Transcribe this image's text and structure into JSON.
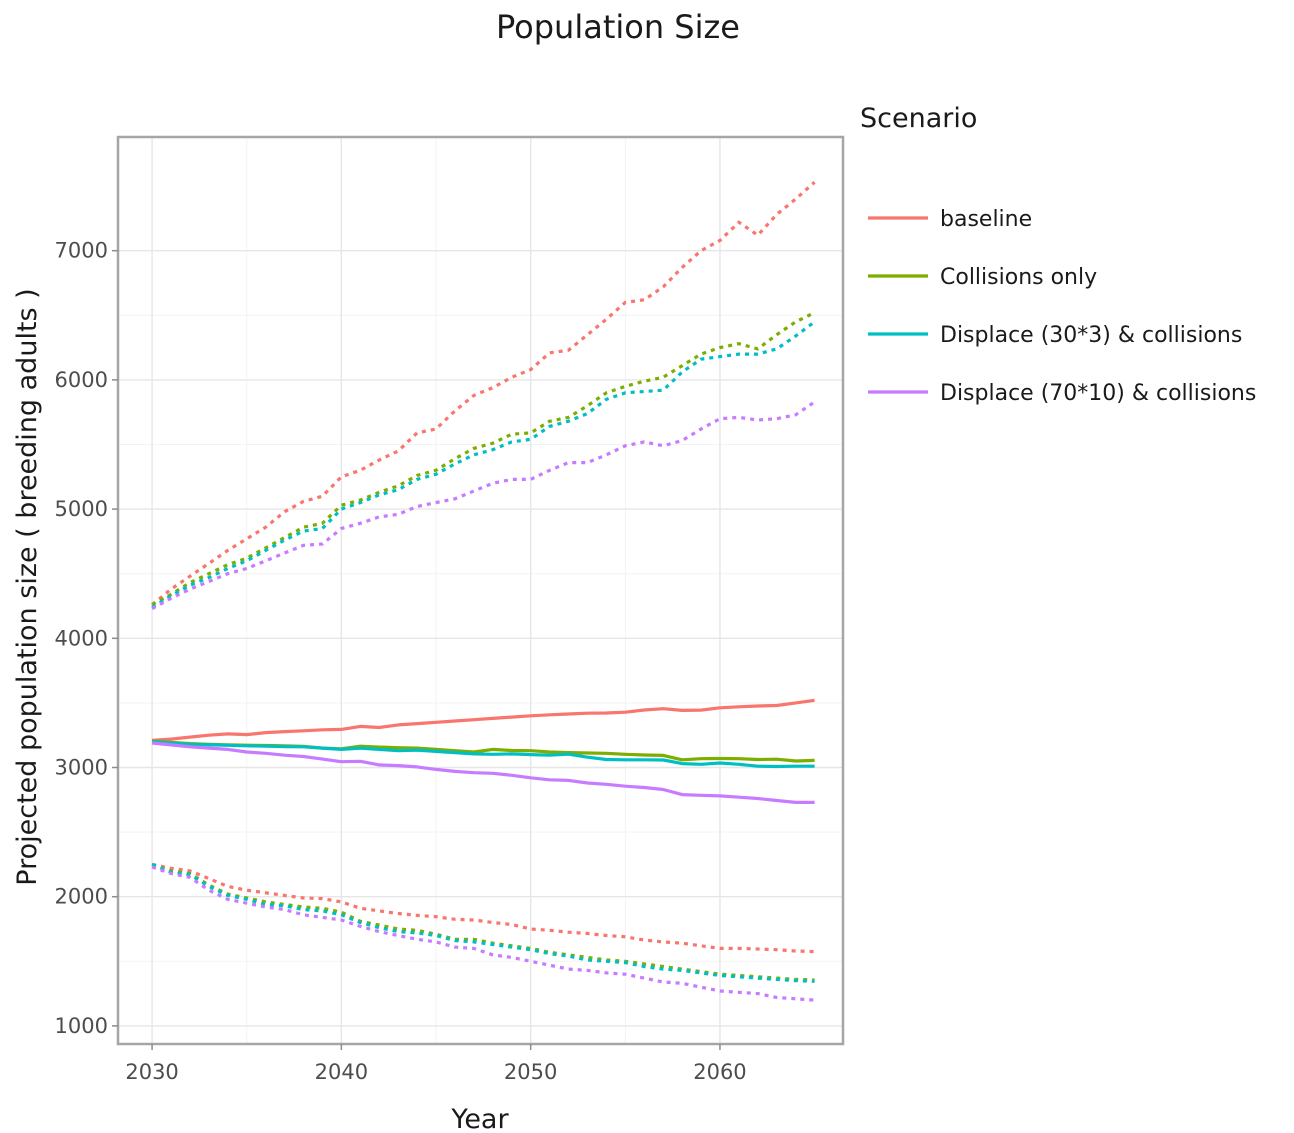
{
  "chart_data": {
    "type": "line",
    "title": "Population Size",
    "xlabel": "Year",
    "ylabel": "Projected population size ( breeding adults )",
    "xlim": [
      2028.2,
      2066.5
    ],
    "ylim": [
      860,
      7880
    ],
    "xticks": [
      2030,
      2040,
      2050,
      2060
    ],
    "yticks": [
      1000,
      2000,
      3000,
      4000,
      5000,
      6000,
      7000
    ],
    "grid": true,
    "legend": {
      "title": "Scenario",
      "position": "right"
    },
    "x": [
      2030,
      2031,
      2032,
      2033,
      2034,
      2035,
      2036,
      2037,
      2038,
      2039,
      2040,
      2041,
      2042,
      2043,
      2044,
      2045,
      2046,
      2047,
      2048,
      2049,
      2050,
      2051,
      2052,
      2053,
      2054,
      2055,
      2056,
      2057,
      2058,
      2059,
      2060,
      2061,
      2062,
      2063,
      2064,
      2065
    ],
    "series": [
      {
        "name": "baseline",
        "color": "#F8766D",
        "mean": [
          3210,
          3220,
          3235,
          3250,
          3260,
          3255,
          3270,
          3278,
          3284,
          3292,
          3295,
          3318,
          3310,
          3330,
          3340,
          3350,
          3360,
          3370,
          3380,
          3390,
          3400,
          3408,
          3414,
          3420,
          3422,
          3428,
          3445,
          3455,
          3442,
          3444,
          3462,
          3470,
          3476,
          3480,
          3500,
          3520
        ],
        "upper": [
          4260,
          4380,
          4480,
          4580,
          4680,
          4770,
          4860,
          4980,
          5060,
          5100,
          5250,
          5300,
          5380,
          5450,
          5590,
          5620,
          5760,
          5880,
          5940,
          6020,
          6080,
          6210,
          6230,
          6350,
          6470,
          6600,
          6620,
          6720,
          6870,
          7000,
          7080,
          7220,
          7120,
          7280,
          7400,
          7530
        ],
        "lower": [
          2250,
          2220,
          2200,
          2140,
          2080,
          2050,
          2030,
          2010,
          1990,
          1985,
          1960,
          1910,
          1890,
          1870,
          1855,
          1845,
          1825,
          1820,
          1800,
          1785,
          1750,
          1740,
          1725,
          1715,
          1700,
          1690,
          1665,
          1650,
          1640,
          1620,
          1600,
          1600,
          1595,
          1590,
          1580,
          1575
        ]
      },
      {
        "name": "Collisions only",
        "color": "#7CAE00",
        "mean": [
          3205,
          3195,
          3185,
          3180,
          3176,
          3173,
          3170,
          3168,
          3164,
          3150,
          3145,
          3165,
          3158,
          3153,
          3150,
          3140,
          3130,
          3120,
          3140,
          3132,
          3130,
          3120,
          3115,
          3112,
          3110,
          3102,
          3097,
          3094,
          3060,
          3068,
          3070,
          3068,
          3062,
          3064,
          3050,
          3055
        ],
        "upper": [
          4260,
          4340,
          4430,
          4500,
          4570,
          4620,
          4700,
          4780,
          4860,
          4890,
          5030,
          5070,
          5130,
          5180,
          5260,
          5300,
          5390,
          5470,
          5510,
          5580,
          5590,
          5680,
          5710,
          5800,
          5900,
          5950,
          5990,
          6020,
          6110,
          6200,
          6250,
          6280,
          6240,
          6350,
          6450,
          6520
        ],
        "lower": [
          2250,
          2200,
          2180,
          2090,
          2020,
          1990,
          1960,
          1940,
          1920,
          1910,
          1880,
          1810,
          1780,
          1750,
          1740,
          1710,
          1670,
          1670,
          1640,
          1620,
          1600,
          1570,
          1550,
          1530,
          1510,
          1500,
          1480,
          1460,
          1440,
          1420,
          1400,
          1390,
          1380,
          1370,
          1360,
          1355
        ]
      },
      {
        "name": "Displace (30*3) & collisions",
        "color": "#00BFC4",
        "mean": [
          3200,
          3190,
          3180,
          3176,
          3172,
          3168,
          3165,
          3162,
          3160,
          3150,
          3140,
          3150,
          3140,
          3130,
          3135,
          3125,
          3115,
          3105,
          3102,
          3105,
          3100,
          3095,
          3103,
          3080,
          3062,
          3060,
          3060,
          3058,
          3030,
          3025,
          3035,
          3025,
          3010,
          3008,
          3010,
          3010
        ],
        "upper": [
          4240,
          4330,
          4410,
          4470,
          4540,
          4600,
          4680,
          4760,
          4830,
          4850,
          5000,
          5050,
          5110,
          5150,
          5230,
          5270,
          5350,
          5420,
          5460,
          5520,
          5540,
          5640,
          5680,
          5740,
          5850,
          5900,
          5910,
          5920,
          6060,
          6160,
          6180,
          6200,
          6200,
          6240,
          6340,
          6450
        ],
        "lower": [
          2250,
          2190,
          2170,
          2080,
          2010,
          1980,
          1940,
          1930,
          1900,
          1890,
          1860,
          1800,
          1760,
          1730,
          1720,
          1700,
          1660,
          1650,
          1630,
          1610,
          1590,
          1560,
          1540,
          1510,
          1500,
          1490,
          1460,
          1440,
          1430,
          1410,
          1390,
          1380,
          1370,
          1360,
          1350,
          1345
        ]
      },
      {
        "name": "Displace (70*10) & collisions",
        "color": "#C77CFF",
        "mean": [
          3190,
          3175,
          3160,
          3150,
          3140,
          3120,
          3110,
          3095,
          3085,
          3065,
          3045,
          3048,
          3020,
          3015,
          3005,
          2985,
          2970,
          2960,
          2955,
          2940,
          2920,
          2905,
          2900,
          2880,
          2870,
          2855,
          2845,
          2830,
          2790,
          2785,
          2780,
          2770,
          2760,
          2745,
          2730,
          2730
        ],
        "upper": [
          4230,
          4310,
          4380,
          4440,
          4500,
          4540,
          4600,
          4660,
          4720,
          4730,
          4850,
          4890,
          4940,
          4960,
          5020,
          5050,
          5080,
          5140,
          5200,
          5230,
          5230,
          5300,
          5360,
          5360,
          5420,
          5490,
          5520,
          5490,
          5530,
          5620,
          5700,
          5710,
          5690,
          5700,
          5730,
          5830
        ],
        "lower": [
          2230,
          2180,
          2150,
          2050,
          1980,
          1950,
          1920,
          1900,
          1860,
          1840,
          1820,
          1770,
          1730,
          1700,
          1670,
          1650,
          1610,
          1600,
          1550,
          1530,
          1500,
          1470,
          1440,
          1430,
          1410,
          1400,
          1370,
          1340,
          1330,
          1300,
          1270,
          1260,
          1250,
          1220,
          1210,
          1200
        ]
      }
    ]
  }
}
